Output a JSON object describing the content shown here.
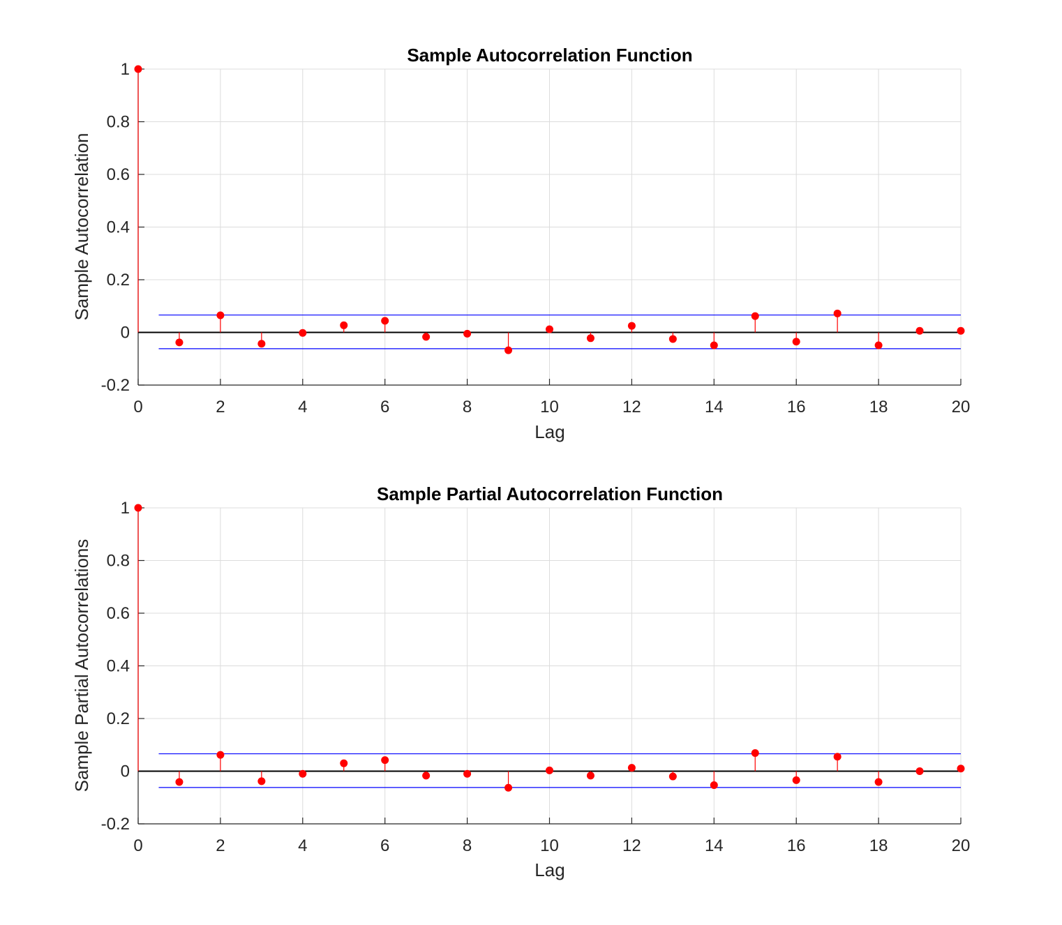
{
  "figure": {
    "background": "#ffffff"
  },
  "chart_data": [
    {
      "type": "stem",
      "title": "Sample Autocorrelation Function",
      "xlabel": "Lag",
      "ylabel": "Sample Autocorrelation",
      "xlim": [
        0,
        20
      ],
      "ylim": [
        -0.2,
        1
      ],
      "xticks": [
        "0",
        "2",
        "4",
        "6",
        "8",
        "10",
        "12",
        "14",
        "16",
        "18",
        "20"
      ],
      "yticks": [
        "-0.2",
        "0",
        "0.2",
        "0.4",
        "0.6",
        "0.8",
        "1"
      ],
      "grid": true,
      "x": [
        0,
        1,
        2,
        3,
        4,
        5,
        6,
        7,
        8,
        9,
        10,
        11,
        12,
        13,
        14,
        15,
        16,
        17,
        18,
        19,
        20
      ],
      "values": [
        1,
        -0.038,
        0.065,
        -0.043,
        -0.002,
        0.027,
        0.044,
        -0.017,
        -0.005,
        -0.068,
        0.012,
        -0.022,
        0.025,
        -0.025,
        -0.049,
        0.062,
        -0.035,
        0.072,
        -0.049,
        0.006,
        0.006
      ],
      "confidence_bounds": {
        "upper": 0.066,
        "lower": -0.062,
        "x_range": [
          0.5,
          20
        ]
      },
      "colors": {
        "stem": "#ff0000",
        "bounds": "#0000ff",
        "zero_line": "#000000"
      }
    },
    {
      "type": "stem",
      "title": "Sample Partial Autocorrelation Function",
      "xlabel": "Lag",
      "ylabel": "Sample Partial Autocorrelations",
      "xlim": [
        0,
        20
      ],
      "ylim": [
        -0.2,
        1
      ],
      "xticks": [
        "0",
        "2",
        "4",
        "6",
        "8",
        "10",
        "12",
        "14",
        "16",
        "18",
        "20"
      ],
      "yticks": [
        "-0.2",
        "0",
        "0.2",
        "0.4",
        "0.6",
        "0.8",
        "1"
      ],
      "grid": true,
      "x": [
        0,
        1,
        2,
        3,
        4,
        5,
        6,
        7,
        8,
        9,
        10,
        11,
        12,
        13,
        14,
        15,
        16,
        17,
        18,
        19,
        20
      ],
      "values": [
        1,
        -0.041,
        0.062,
        -0.038,
        -0.01,
        0.03,
        0.042,
        -0.017,
        -0.01,
        -0.063,
        0.003,
        -0.017,
        0.013,
        -0.02,
        -0.053,
        0.069,
        -0.034,
        0.055,
        -0.041,
        0.0,
        0.01
      ],
      "confidence_bounds": {
        "upper": 0.066,
        "lower": -0.062,
        "x_range": [
          0.5,
          20
        ]
      },
      "colors": {
        "stem": "#ff0000",
        "bounds": "#0000ff",
        "zero_line": "#000000"
      }
    }
  ]
}
